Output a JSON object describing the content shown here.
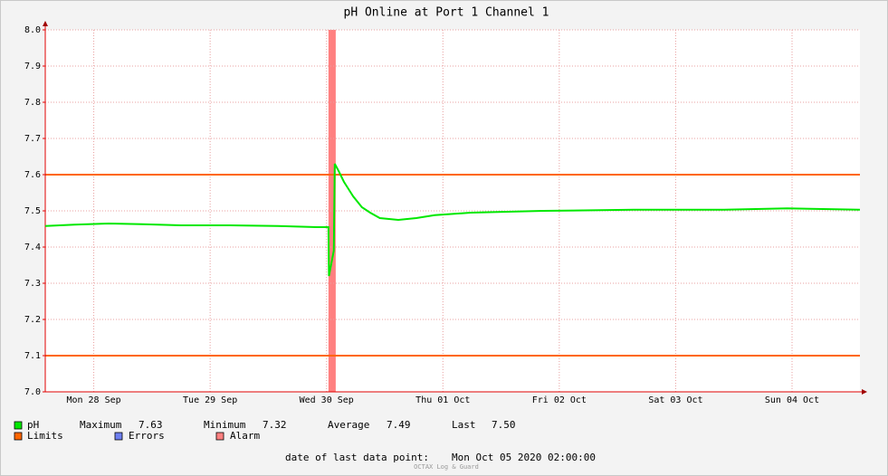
{
  "chart_data": {
    "type": "line",
    "title": "pH Online at Port 1 Channel 1",
    "x": [
      2,
      8,
      15,
      22,
      30,
      40,
      50,
      58,
      60.4,
      60.5,
      61.5,
      61.7,
      62.5,
      63.6,
      65.5,
      67.3,
      69,
      71,
      74.8,
      78.5,
      82.3,
      89.7,
      104.7,
      123.3,
      142,
      155,
      170
    ],
    "series": [
      {
        "name": "pH",
        "color": "#00e800",
        "values": [
          7.458,
          7.462,
          7.465,
          7.463,
          7.46,
          7.46,
          7.458,
          7.455,
          7.455,
          7.32,
          7.39,
          7.63,
          7.61,
          7.58,
          7.54,
          7.51,
          7.495,
          7.48,
          7.475,
          7.48,
          7.488,
          7.495,
          7.5,
          7.503,
          7.503,
          7.507,
          7.503
        ]
      }
    ],
    "limits": {
      "name": "Limits",
      "color": "#ff6600",
      "values": [
        7.6,
        7.1
      ]
    },
    "errors": {
      "name": "Errors",
      "color": "#6e7ff0"
    },
    "alarm": {
      "name": "Alarm",
      "color": "#ff8080",
      "ranges": [
        [
          60.4,
          61.9
        ]
      ]
    },
    "xlim": [
      2,
      170
    ],
    "xticks": [
      {
        "value": 12,
        "label": "Mon 28 Sep"
      },
      {
        "value": 36,
        "label": "Tue 29 Sep"
      },
      {
        "value": 60,
        "label": "Wed 30 Sep"
      },
      {
        "value": 84,
        "label": "Thu 01 Oct"
      },
      {
        "value": 108,
        "label": "Fri 02 Oct"
      },
      {
        "value": 132,
        "label": "Sat 03 Oct"
      },
      {
        "value": 156,
        "label": "Sun 04 Oct"
      }
    ],
    "ylim": [
      7,
      8
    ],
    "yticks": [
      {
        "value": 7,
        "label": "7.0"
      },
      7.1,
      7.2,
      7.3,
      7.4,
      7.5,
      7.6,
      7.7,
      7.8,
      7.9,
      {
        "value": 8,
        "label": "8.0"
      }
    ],
    "grid": true,
    "stats": [
      {
        "label": "Maximum",
        "value": 7.63
      },
      {
        "label": "Minimum",
        "value": 7.32
      },
      {
        "label": "Average",
        "value": 7.49
      },
      {
        "label": "Last",
        "value": 7.5,
        "value_label": "7.50"
      }
    ],
    "footer": {
      "label": "date of last data point:",
      "value": "Mon Oct 05 2020 02:00:00"
    },
    "watermark": "OCTAX Log & Guard"
  }
}
